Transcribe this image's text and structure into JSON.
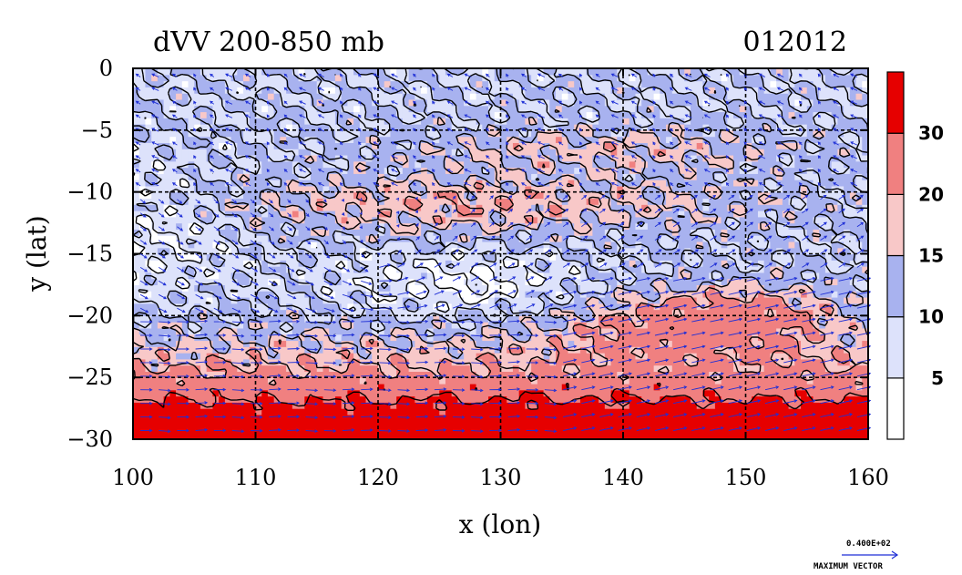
{
  "title_left": "dVV 200-850 mb",
  "title_right": "012012",
  "chart_data": {
    "type": "heatmap",
    "xlabel": "x (lon)",
    "ylabel": "y (lat)",
    "xlim": [
      100,
      160
    ],
    "ylim": [
      -30,
      0
    ],
    "x_ticks": [
      100,
      110,
      120,
      130,
      140,
      150,
      160
    ],
    "y_ticks": [
      0,
      -5,
      -10,
      -15,
      -20,
      -25,
      -30
    ],
    "x_tick_labels": [
      "100",
      "110",
      "120",
      "130",
      "140",
      "150",
      "160"
    ],
    "y_tick_labels": [
      "0",
      "−5",
      "−10",
      "−15",
      "−20",
      "−25",
      "−30"
    ],
    "grid": true,
    "colorbar": {
      "levels": [
        0,
        5,
        10,
        15,
        20,
        30,
        40
      ],
      "labels": [
        "5",
        "10",
        "15",
        "20",
        "30"
      ],
      "colors": [
        "#ffffff",
        "#dde2fb",
        "#a8b2ef",
        "#f8c8c8",
        "#f08080",
        "#e60000"
      ]
    },
    "vector_color": "#1f2fd6",
    "max_vector_value": "0.400E+02",
    "max_vector_label": "MAXIMUM VECTOR"
  }
}
